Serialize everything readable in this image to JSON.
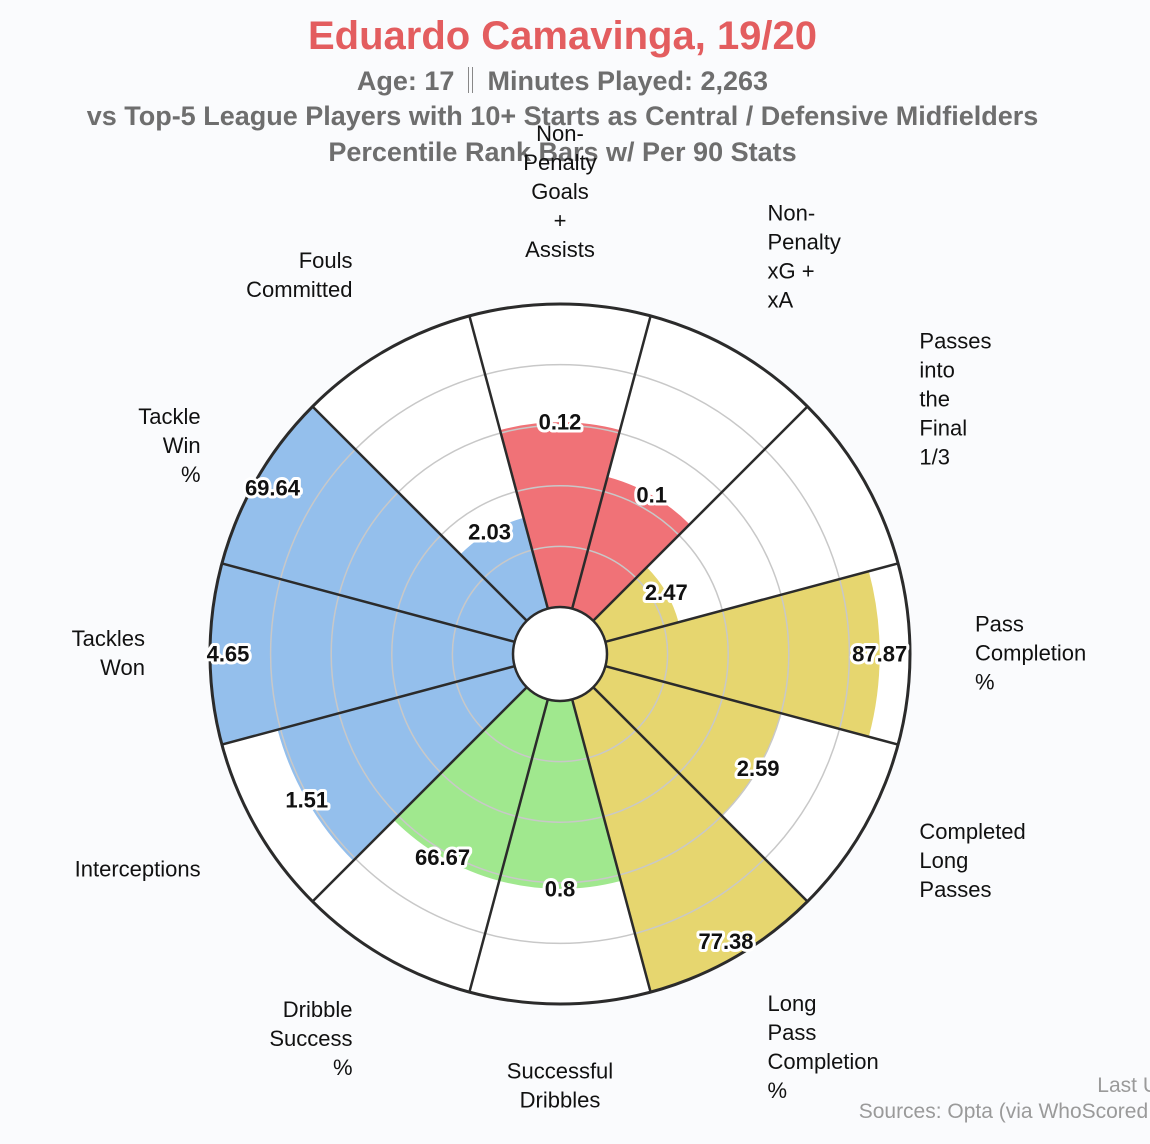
{
  "title": "Eduardo Camavinga, 19/20",
  "subtitle_age": "Age: 17",
  "subtitle_minutes": "Minutes Played: 2,263",
  "subtitle_comparison": "vs Top-5 League Players with 10+ Starts as Central / Defensive Midfielders",
  "subtitle_method": "Percentile Rank Bars w/ Per 90 Stats",
  "footer_updated": "Last U",
  "footer_sources": "Sources: Opta (via WhoScored.",
  "colors": {
    "attacking": "#f07277",
    "passing": "#e6d66f",
    "dribbling": "#a0e88e",
    "defending": "#94bfec",
    "axis": "#2b2b2b",
    "grid": "#c8c8c8"
  },
  "chart_data": {
    "type": "polar-bar",
    "title": "Eduardo Camavinga, 19/20",
    "rlim": [
      0,
      100
    ],
    "grid": true,
    "categories": [
      {
        "label": [
          "Non-",
          "Penalty",
          "Goals",
          "+",
          "Assists"
        ],
        "value_label": "0.12",
        "percentile": 61,
        "group": "attacking"
      },
      {
        "label": [
          "Non-",
          "Penalty",
          "xG +",
          "xA"
        ],
        "value_label": "0.1",
        "percentile": 45,
        "group": "attacking"
      },
      {
        "label": [
          "Passes",
          "into",
          "the",
          "Final",
          "1/3"
        ],
        "value_label": "2.47",
        "percentile": 25,
        "group": "passing"
      },
      {
        "label": [
          "Pass",
          "Completion",
          "%"
        ],
        "value_label": "87.87",
        "percentile": 90,
        "group": "passing"
      },
      {
        "label": [
          "Completed",
          "Long",
          "Passes"
        ],
        "value_label": "2.59",
        "percentile": 60,
        "group": "passing"
      },
      {
        "label": [
          "Long",
          "Pass",
          "Completion",
          "%"
        ],
        "value_label": "77.38",
        "percentile": 100,
        "group": "passing"
      },
      {
        "label": [
          "Successful",
          "Dribbles"
        ],
        "value_label": "0.8",
        "percentile": 62,
        "group": "dribbling"
      },
      {
        "label": [
          "Dribble",
          "Success",
          "%"
        ],
        "value_label": "66.67",
        "percentile": 62,
        "group": "dribbling"
      },
      {
        "label": [
          "Interceptions"
        ],
        "value_label": "1.51",
        "percentile": 81,
        "group": "defending"
      },
      {
        "label": [
          "Tackles",
          "Won"
        ],
        "value_label": "4.65",
        "percentile": 100,
        "group": "defending"
      },
      {
        "label": [
          "Tackle",
          "Win",
          "%"
        ],
        "value_label": "69.64",
        "percentile": 100,
        "group": "defending"
      },
      {
        "label": [
          "Fouls",
          "Committed"
        ],
        "value_label": "2.03",
        "percentile": 31,
        "group": "defending"
      }
    ]
  }
}
